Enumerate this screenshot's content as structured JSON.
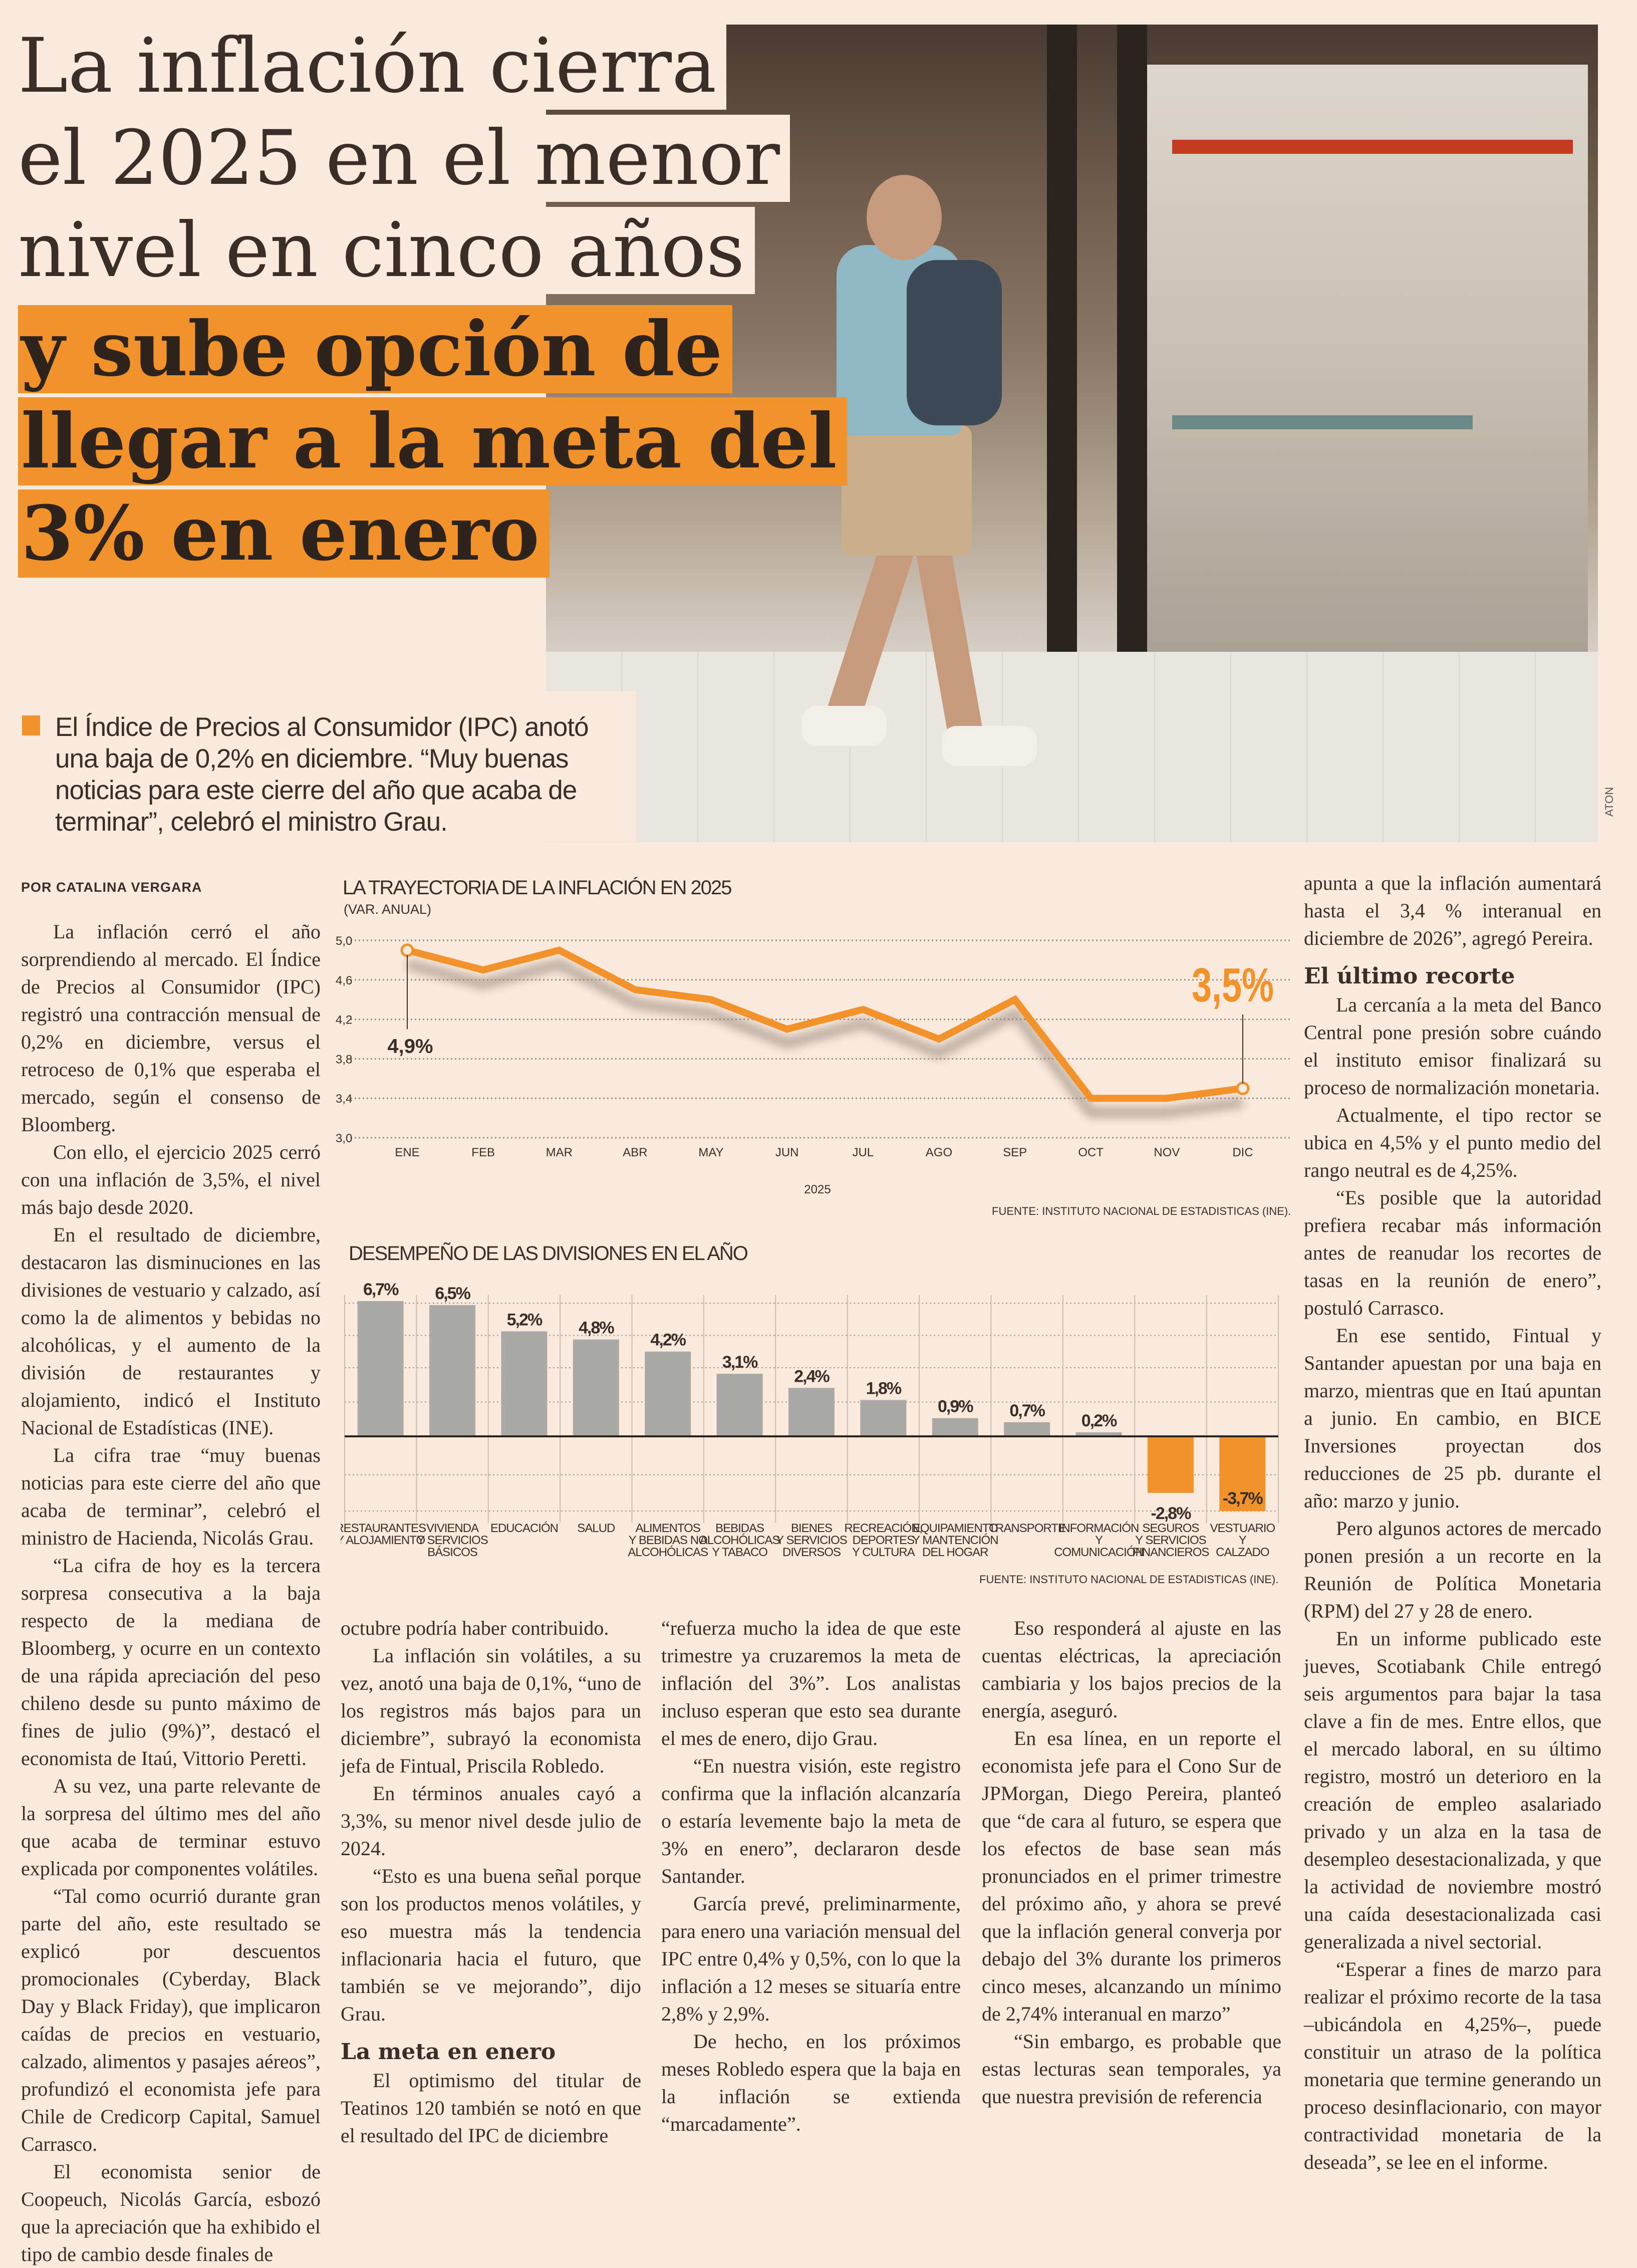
{
  "headline": {
    "lines": [
      "La inflación cierra",
      "el 2025 en el menor",
      "nivel en cinco años"
    ],
    "highlight_lines": [
      "y sube opción de",
      "llegar a la meta del",
      "3% en enero"
    ]
  },
  "summary": "El Índice de Precios al Consumidor (IPC) anotó una baja de 0,2% en diciembre. “Muy buenas noticias para este cierre del año que acaba de terminar”, celebró el ministro Grau.",
  "photo_credit": "ATON",
  "byline": "POR CATALINA VERGARA",
  "colors": {
    "accent": "#f2922a",
    "bar": "#a9a9a7",
    "text": "#3a2e28",
    "background": "#fbe9dc"
  },
  "columns": {
    "col1": [
      "La inflación cerró el año sorprendiendo al mercado. El Índice de Precios al Consumidor (IPC) registró una contracción mensual de 0,2% en diciembre, versus el retroceso de 0,1% que esperaba el mercado, según el consenso de Bloomberg.",
      "Con ello, el ejercicio 2025 cerró con una inflación de 3,5%, el nivel más bajo desde 2020.",
      "En el resultado de diciembre, destacaron las disminuciones en las divisiones de vestuario y calzado, así como la de alimentos y bebidas no alcohólicas, y el aumento de la división de restaurantes y alojamiento, indicó el Instituto Nacional de Estadísticas (INE).",
      "La cifra trae “muy buenas noticias para este cierre del año que acaba de terminar”, celebró el ministro de Hacienda, Nicolás Grau.",
      "“La cifra de hoy es la tercera sorpresa consecutiva a la baja respecto de la mediana de Bloomberg, y ocurre en un contexto de una rápida apreciación del peso chileno desde su punto máximo de fines de julio (9%)”, destacó el economista de Itaú, Vittorio Peretti.",
      "A su vez, una parte relevante de la sorpresa del último mes del año que acaba de terminar estuvo explicada por componentes volátiles.",
      "“Tal como ocurrió durante gran parte del año, este resultado se explicó por descuentos promocionales (Cyberday, Black Day y Black Friday), que implicaron caídas de precios en vestuario, calzado, alimentos y pasajes aéreos”, profundizó el economista jefe para Chile de Credicorp Capital, Samuel Carrasco.",
      "El economista senior de Coopeuch, Nicolás García, esbozó que la apreciación que ha exhibido el tipo de cambio desde finales de"
    ],
    "col2": {
      "start": "octubre podría haber contribuido.",
      "paras": [
        "La inflación sin volátiles, a su vez, anotó una baja de 0,1%, “uno de los registros más bajos para un diciembre”, subrayó la economista jefa de Fintual, Priscila Robledo.",
        "En términos anuales cayó a 3,3%, su menor nivel desde julio de 2024.",
        "“Esto es una buena señal porque son los productos menos volátiles, y eso muestra más la tendencia inflacionaria hacia el futuro, que también se ve mejorando”, dijo Grau."
      ],
      "subhead": "La meta en enero",
      "after": "El optimismo del titular de Teatinos 120 también se notó en que el resultado del IPC de diciembre"
    },
    "col3": {
      "start": "“refuerza mucho la idea de que este trimestre ya cruzaremos la meta de inflación del 3%”. Los analistas incluso esperan que esto sea durante el mes de enero, dijo Grau.",
      "paras": [
        "“En nuestra visión, este registro confirma que la inflación alcanzaría o estaría levemente bajo la meta de 3% en enero”, declararon desde Santander.",
        "García prevé, preliminarmente, para enero una variación mensual del IPC entre 0,4% y 0,5%, con lo que la inflación a 12 meses se situaría entre 2,8% y 2,9%.",
        "De hecho, en los próximos meses Robledo espera que la baja en la inflación se extienda “marcadamente”."
      ]
    },
    "col4": [
      "Eso responderá al ajuste en las cuentas eléctricas, la apreciación cambiaria y los bajos precios de la energía, aseguró.",
      "En esa línea, en un reporte el economista jefe para el Cono Sur de JPMorgan, Diego Pereira, planteó que “de cara al futuro, se espera que los efectos de base sean más pronunciados en el primer trimestre del próximo año, y ahora se prevé que la inflación general converja por debajo del 3% durante los primeros cinco meses, alcanzando un mínimo de 2,74% interanual en marzo”",
      "“Sin embargo, es probable que estas lecturas sean temporales, ya que nuestra previsión de referencia"
    ],
    "col5": {
      "start": "apunta a que la inflación aumentará hasta el 3,4 % interanual en diciembre de 2026”, agregó Pereira.",
      "subhead": "El último recorte",
      "paras": [
        "La cercanía a la meta del Banco Central pone presión sobre cuándo el instituto emisor finalizará su proceso de normalización monetaria.",
        "Actualmente, el tipo rector se ubica en 4,5% y el punto medio del rango neutral es de 4,25%.",
        "“Es posible que la autoridad prefiera recabar más información antes de reanudar los recortes de tasas en la reunión de enero”, postuló Carrasco.",
        "En ese sentido, Fintual y Santander apuestan por una baja en marzo, mientras que en Itaú apuntan a junio. En cambio, en BICE Inversiones proyectan dos reducciones de 25 pb. durante el año: marzo y junio.",
        "Pero algunos actores de mercado ponen presión a un recorte en la Reunión de Política Monetaria (RPM) del 27 y 28 de enero.",
        "En un informe publicado este jueves, Scotiabank Chile entregó seis argumentos para bajar la tasa clave a fin de mes. Entre ellos, que el mercado laboral, en su último registro, mostró un deterioro en la creación de empleo asalariado privado y un alza en la tasa de desempleo desestacionalizada, y que la actividad de noviembre mostró una caída desestacionalizada casi generalizada a nivel sectorial.",
        "“Esperar a fines de marzo para realizar el próximo recorte de la tasa –ubicándola en 4,25%–, puede constituir un atraso de la política monetaria que termine generando un proceso desinflacionario, con mayor contractividad monetaria de la deseada”, se lee en el informe."
      ]
    }
  },
  "chart_data": [
    {
      "type": "line",
      "title": "LA TRAYECTORIA DE LA INFLACIÓN EN 2025",
      "subtitle": "(VAR. ANUAL)",
      "xlabel": "2025",
      "categories": [
        "ENE",
        "FEB",
        "MAR",
        "ABR",
        "MAY",
        "JUN",
        "JUL",
        "AGO",
        "SEP",
        "OCT",
        "NOV",
        "DIC"
      ],
      "values": [
        4.9,
        4.7,
        4.9,
        4.5,
        4.4,
        4.1,
        4.3,
        4.0,
        4.4,
        3.4,
        3.4,
        3.5
      ],
      "ylim": [
        3.0,
        5.0
      ],
      "yticks": [
        "5,0",
        "4,6",
        "4,2",
        "3,8",
        "3,4",
        "3,0"
      ],
      "ytick_values": [
        5.0,
        4.6,
        4.2,
        3.8,
        3.4,
        3.0
      ],
      "annotations": {
        "first": "4,9%",
        "last": "3,5%"
      },
      "grid": true,
      "source": "FUENTE: INSTITUTO NACIONAL DE ESTADISTICAS (INE)."
    },
    {
      "type": "bar",
      "title": "DESEMPEÑO DE LAS DIVISIONES EN EL AÑO",
      "categories": [
        [
          "RESTAURANTES",
          "Y ALOJAMIENTO"
        ],
        [
          "VIVIENDA",
          "Y SERVICIOS",
          "BÁSICOS"
        ],
        [
          "EDUCACIÓN"
        ],
        [
          "SALUD"
        ],
        [
          "ALIMENTOS",
          "Y BEBIDAS NO",
          "ALCOHÓLICAS"
        ],
        [
          "BEBIDAS",
          "ALCOHÓLICAS",
          "Y TABACO"
        ],
        [
          "BIENES",
          "Y SERVICIOS",
          "DIVERSOS"
        ],
        [
          "RECREACIÓN,",
          "DEPORTES",
          "Y CULTURA"
        ],
        [
          "EQUIPAMIENTO",
          "Y MANTENCIÓN",
          "DEL HOGAR"
        ],
        [
          "TRANSPORTE"
        ],
        [
          "INFORMACIÓN",
          "Y",
          "COMUNICACIÓN"
        ],
        [
          "SEGUROS",
          "Y SERVICIOS",
          "FINANCIEROS"
        ],
        [
          "VESTUARIO",
          "Y",
          "CALZADO"
        ]
      ],
      "values": [
        6.7,
        6.5,
        5.2,
        4.8,
        4.2,
        3.1,
        2.4,
        1.8,
        0.9,
        0.7,
        0.2,
        -2.8,
        -3.7
      ],
      "labels": [
        "6,7%",
        "6,5%",
        "5,2%",
        "4,8%",
        "4,2%",
        "3,1%",
        "2,4%",
        "1,8%",
        "0,9%",
        "0,7%",
        "0,2%",
        "-2,8%",
        "-3,7%"
      ],
      "ylim": [
        -4.2,
        7.0
      ],
      "grid": true,
      "source": "FUENTE: INSTITUTO NACIONAL DE ESTADISTICAS (INE)."
    }
  ]
}
